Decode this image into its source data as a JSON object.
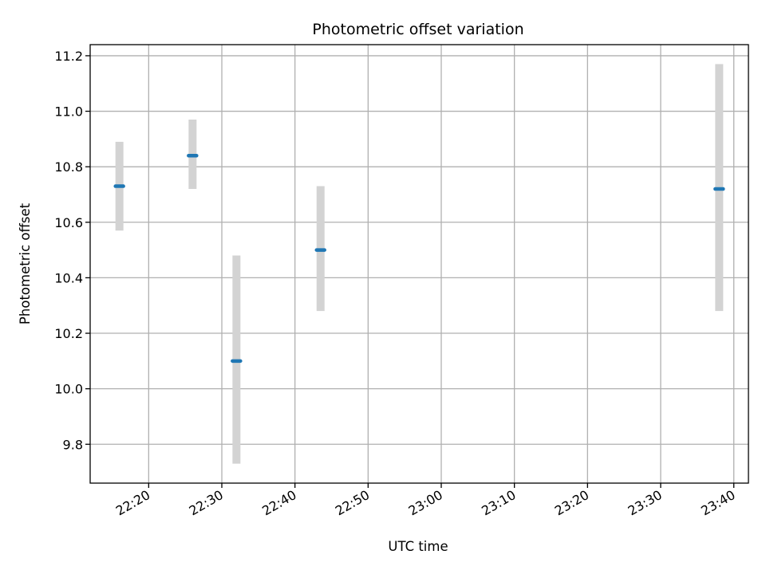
{
  "chart_data": {
    "type": "scatter",
    "title": "Photometric offset variation",
    "xlabel": "UTC time",
    "ylabel": "Photometric offset",
    "x_ticks": [
      "22:20",
      "22:30",
      "22:40",
      "22:50",
      "23:00",
      "23:10",
      "23:20",
      "23:30",
      "23:40"
    ],
    "x_tick_minutes": [
      0,
      10,
      20,
      30,
      40,
      50,
      60,
      70,
      80
    ],
    "xlim": [
      "22:12",
      "23:42"
    ],
    "y_ticks": [
      "9.8",
      "10.0",
      "10.2",
      "10.4",
      "10.6",
      "10.8",
      "11.0",
      "11.2"
    ],
    "ylim": [
      9.66,
      11.24
    ],
    "grid": true,
    "series": [
      {
        "points": [
          {
            "x": "22:16",
            "y": 10.73,
            "err_low": 10.57,
            "err_high": 10.89
          },
          {
            "x": "22:26",
            "y": 10.84,
            "err_low": 10.72,
            "err_high": 10.97
          },
          {
            "x": "22:32",
            "y": 10.1,
            "err_low": 9.73,
            "err_high": 10.48
          },
          {
            "x": "22:43.5",
            "y": 10.5,
            "err_low": 10.28,
            "err_high": 10.73
          },
          {
            "x": "23:38",
            "y": 10.72,
            "err_low": 10.28,
            "err_high": 11.17
          }
        ]
      }
    ],
    "colors": {
      "marker": "#1f77b4",
      "errorbar": "#d3d3d3",
      "grid": "#b0b0b0",
      "axes": "#000000"
    }
  }
}
